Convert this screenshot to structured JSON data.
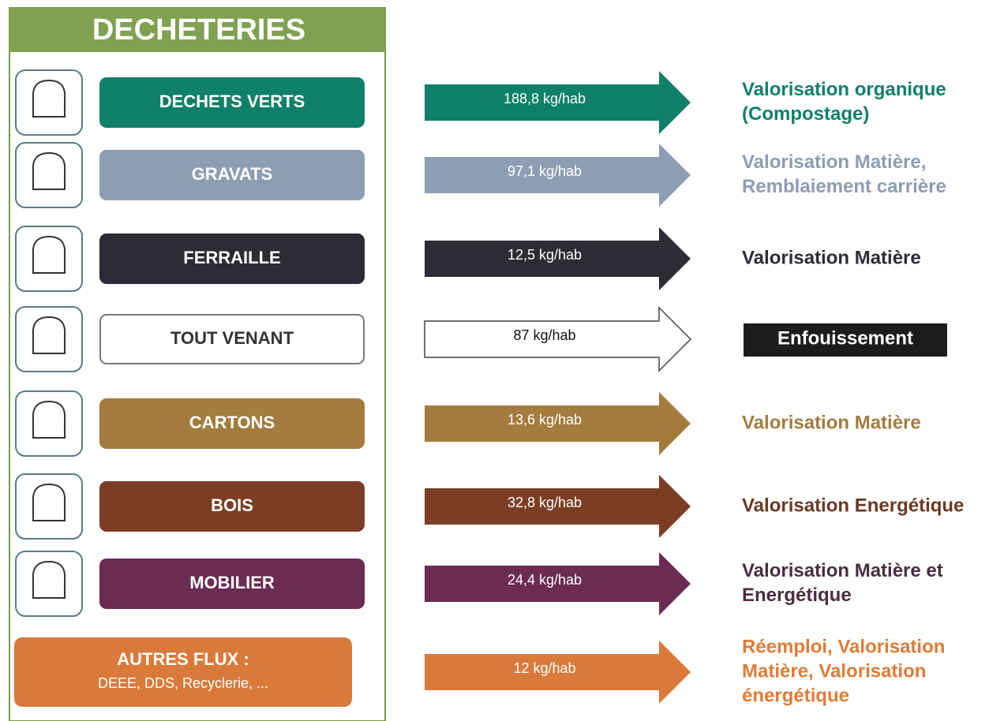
{
  "header": {
    "title": "DECHETERIES"
  },
  "rows": [
    {
      "label": [
        "DECHETS VERTS"
      ],
      "amount": "188,8 kg/hab",
      "destination": [
        "Valorisation organique",
        "(Compostage)"
      ],
      "color": "#0f8069",
      "dest_color": "#0f8069"
    },
    {
      "label": [
        "GRAVATS"
      ],
      "amount": "97,1 kg/hab",
      "destination": [
        "Valorisation Matière,",
        "Remblaiement carrière"
      ],
      "color": "#8d9db3",
      "dest_color": "#8d9db3"
    },
    {
      "label": [
        "FERRAILLE"
      ],
      "amount": "12,5 kg/hab",
      "destination": [
        "Valorisation Matière"
      ],
      "color": "#2c2c34",
      "dest_color": "#2c2c34"
    },
    {
      "label": [
        "TOUT VENANT"
      ],
      "amount": "87 kg/hab",
      "destination": [
        "Enfouissement"
      ],
      "color": "#ffffff",
      "dest_color": "#ffffff",
      "dest_box": "#1c1c1c"
    },
    {
      "label": [
        "CARTONS"
      ],
      "amount": "13,6 kg/hab",
      "destination": [
        "Valorisation Matière"
      ],
      "color": "#a37c3e",
      "dest_color": "#a37c3e"
    },
    {
      "label": [
        "BOIS"
      ],
      "amount": "32,8 kg/hab",
      "destination": [
        "Valorisation Energétique"
      ],
      "color": "#7b3e25",
      "dest_color": "#6b3822"
    },
    {
      "label": [
        "MOBILIER"
      ],
      "amount": "24,4 kg/hab",
      "destination": [
        "Valorisation Matière et",
        "Energétique"
      ],
      "color": "#6b2b53",
      "dest_color": "#4a2e3e"
    },
    {
      "label": [
        "AUTRES FLUX :",
        "DEEE, DDS, Recyclerie, ..."
      ],
      "amount": "12 kg/hab",
      "destination": [
        "Réemploi, Valorisation",
        "Matière, Valorisation",
        "énergétique"
      ],
      "color": "#d97a3b",
      "dest_color": "#e07b36"
    }
  ]
}
